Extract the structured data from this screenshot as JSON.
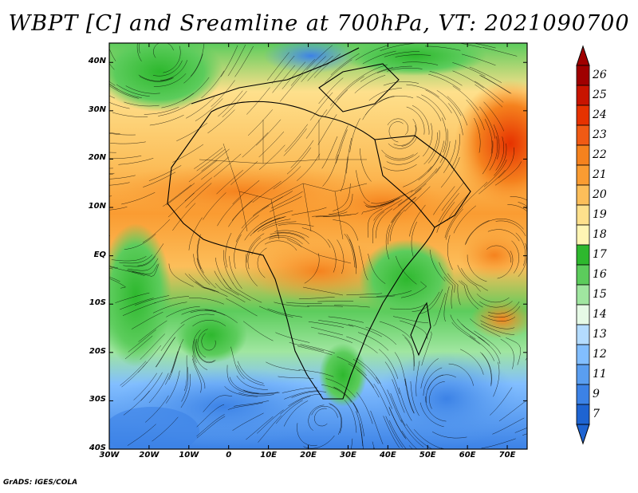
{
  "title": "WBPT [C] and Sreamline at 700hPa, VT: 2021090700",
  "credit": "GrADS: IGES/COLA",
  "map": {
    "lat_ticks": [
      "40N",
      "30N",
      "20N",
      "10N",
      "EQ",
      "10S",
      "20S",
      "30S",
      "40S"
    ],
    "lon_ticks": [
      "30W",
      "20W",
      "10W",
      "0",
      "10E",
      "20E",
      "30E",
      "40E",
      "50E",
      "60E",
      "70E"
    ],
    "lat_range": [
      -40,
      44
    ],
    "lon_range": [
      -30,
      75
    ]
  },
  "colorbar": {
    "labels": [
      "26",
      "25",
      "24",
      "23",
      "22",
      "21",
      "20",
      "19",
      "18",
      "17",
      "16",
      "15",
      "14",
      "13",
      "12",
      "11",
      "9",
      "7"
    ],
    "colors": [
      "#a00000",
      "#c81400",
      "#e63200",
      "#f05a14",
      "#f5821e",
      "#fa9c32",
      "#fcbe5a",
      "#fee08c",
      "#fff5b4",
      "#2eb82e",
      "#5ccc5c",
      "#a0e6a0",
      "#e6fae6",
      "#b4dcff",
      "#82beff",
      "#5a9ef0",
      "#3c82e6",
      "#1e64d2"
    ]
  }
}
